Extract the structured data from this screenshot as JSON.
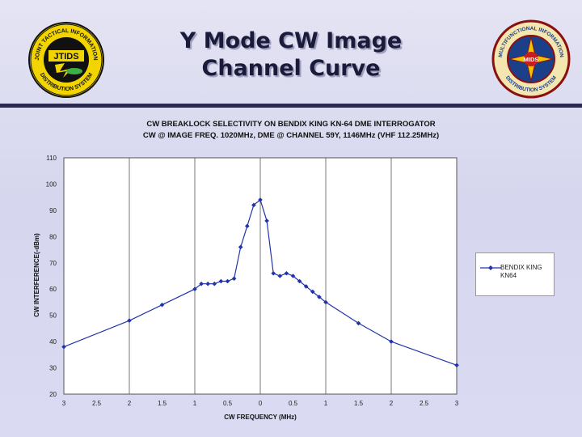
{
  "slide": {
    "title_line1": "Y Mode CW Image",
    "title_line2": "Channel Curve",
    "left_logo": {
      "top_text": "JOINT TACTICAL INFORMATION",
      "bottom_text": "DISTRIBUTION SYSTEM",
      "emblem_text": "JTIDS"
    },
    "right_logo": {
      "top_text": "MULTIFUNCTIONAL INFORMATION",
      "bottom_text": "DISTRIBUTION SYSTEM",
      "emblem_text": "MIDS"
    }
  },
  "chart_data": {
    "type": "line",
    "title_line1": "CW BREAKLOCK SELECTIVITY ON BENDIX KING KN-64 DME INTERROGATOR",
    "title_line2": "CW @ IMAGE FREQ. 1020MHz, DME @ CHANNEL 59Y, 1146MHz (VHF 112.25MHz)",
    "xlabel": "CW FREQUENCY (MHz)",
    "ylabel": "CW INTERFERENCE(-dBm)",
    "xlim": [
      -3,
      3
    ],
    "ylim": [
      20,
      110
    ],
    "x_tick_values": [
      -3,
      -2.5,
      -2,
      -1.5,
      -1,
      -0.5,
      0,
      0.5,
      1,
      1.5,
      2,
      2.5,
      3
    ],
    "x_tick_labels": [
      "3",
      "2.5",
      "2",
      "1.5",
      "1",
      "0.5",
      "0",
      "0.5",
      "1",
      "1.5",
      "2",
      "2.5",
      "3"
    ],
    "y_ticks": [
      20,
      30,
      40,
      50,
      60,
      70,
      80,
      90,
      100,
      110
    ],
    "vertical_gridlines": [
      -2,
      -1,
      0,
      1,
      2
    ],
    "legend_position": "right",
    "series": [
      {
        "name": "BENDIX KING KN64",
        "color": "#2233aa",
        "x": [
          -3,
          -2,
          -1.5,
          -1,
          -0.9,
          -0.8,
          -0.7,
          -0.6,
          -0.5,
          -0.4,
          -0.3,
          -0.2,
          -0.1,
          0,
          0.1,
          0.2,
          0.3,
          0.4,
          0.5,
          0.6,
          0.7,
          0.8,
          0.9,
          1,
          1.5,
          2,
          3
        ],
        "y": [
          38,
          48,
          54,
          60,
          62,
          62,
          62,
          63,
          63,
          64,
          76,
          84,
          92,
          94,
          86,
          66,
          65,
          66,
          65,
          63,
          61,
          59,
          57,
          55,
          47,
          40,
          31
        ]
      }
    ]
  }
}
